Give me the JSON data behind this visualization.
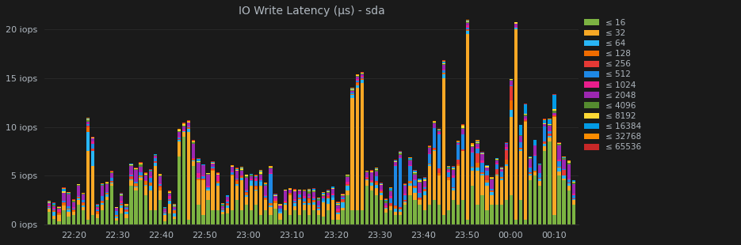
{
  "title": "IO Write Latency (µs) - sda",
  "background_color": "#1a1a1a",
  "plot_bg_color": "#1a1a1a",
  "text_color": "#b0b8c0",
  "grid_color": "#2e2e2e",
  "ylim": [
    0,
    21
  ],
  "yticks": [
    0,
    5,
    10,
    15,
    20
  ],
  "ytick_labels": [
    "0 iops",
    "5 iops",
    "10 iops",
    "15 iops",
    "20 iops"
  ],
  "xtick_labels": [
    "22:20",
    "22:30",
    "22:40",
    "22:50",
    "23:00",
    "23:10",
    "23:20",
    "23:30",
    "23:40",
    "23:50",
    "00:00",
    "00:10"
  ],
  "legend_labels": [
    "≤ 16",
    "≤ 32",
    "≤ 64",
    "≤ 128",
    "≤ 256",
    "≤ 512",
    "≤ 1024",
    "≤ 2048",
    "≤ 4096",
    "≤ 8192",
    "≤ 16384",
    "≤ 32768",
    "≤ 65536"
  ],
  "colors": [
    "#7cb342",
    "#f9a825",
    "#29b6f6",
    "#ef6c00",
    "#e53935",
    "#1e88e5",
    "#e91e8c",
    "#9c27b0",
    "#558b2f",
    "#fdd835",
    "#039be5",
    "#fb8c00",
    "#c62828"
  ],
  "bar_width": 0.7,
  "n_bars": 110
}
